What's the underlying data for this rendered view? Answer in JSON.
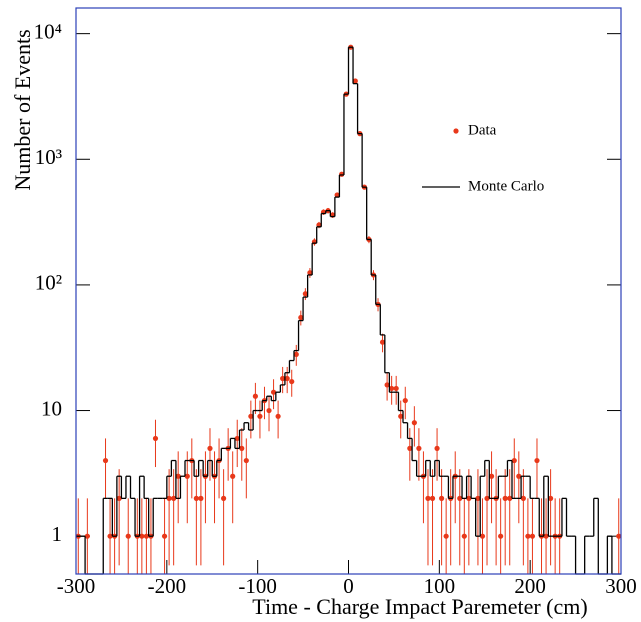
{
  "chart_data": {
    "type": "histogram",
    "x_label": "Time - Charge Impact Paremeter (cm)",
    "y_label": "Number of Events",
    "log_y": true,
    "xlim": [
      -300,
      300
    ],
    "xticks": [
      -300,
      -200,
      -100,
      0,
      100,
      200,
      300
    ],
    "ylim": [
      0.5,
      16000
    ],
    "yticks": [
      1,
      10,
      {
        "value": 100,
        "label": "10²"
      },
      {
        "value": 1000,
        "label": "10³"
      },
      {
        "value": 10000,
        "label": "10⁴"
      }
    ],
    "legend": "upper right",
    "bins": [
      -300,
      -295,
      -290,
      -285,
      -280,
      -275,
      -270,
      -265,
      -260,
      -255,
      -250,
      -245,
      -240,
      -235,
      -230,
      -225,
      -220,
      -215,
      -210,
      -205,
      -200,
      -195,
      -190,
      -185,
      -180,
      -175,
      -170,
      -165,
      -160,
      -155,
      -150,
      -145,
      -140,
      -135,
      -130,
      -125,
      -120,
      -115,
      -110,
      -105,
      -100,
      -95,
      -90,
      -85,
      -80,
      -75,
      -70,
      -65,
      -60,
      -55,
      -50,
      -45,
      -40,
      -35,
      -30,
      -25,
      -20,
      -15,
      -10,
      -5,
      0,
      5,
      10,
      15,
      20,
      25,
      30,
      35,
      40,
      45,
      50,
      55,
      60,
      65,
      70,
      75,
      80,
      85,
      90,
      95,
      100,
      105,
      110,
      115,
      120,
      125,
      130,
      135,
      140,
      145,
      150,
      155,
      160,
      165,
      170,
      175,
      180,
      185,
      190,
      195,
      200,
      205,
      210,
      215,
      220,
      225,
      230,
      235,
      240,
      245,
      250,
      255,
      260,
      265,
      270,
      275,
      280,
      285,
      290,
      295,
      300
    ],
    "series": [
      {
        "name": "Data",
        "color": "#e8381a",
        "style": "points",
        "values": [
          1,
          null,
          1,
          null,
          null,
          null,
          4,
          1,
          1,
          2,
          null,
          1,
          null,
          1,
          1,
          1,
          1,
          6,
          null,
          1,
          2,
          2,
          3,
          null,
          3,
          4,
          2,
          2,
          3,
          5,
          3,
          4,
          2,
          5,
          3,
          6,
          5,
          4,
          9,
          13,
          9,
          12,
          10,
          14,
          9,
          18,
          18,
          17,
          28,
          55,
          85,
          125,
          220,
          300,
          380,
          390,
          360,
          520,
          760,
          3300,
          7800,
          4200,
          1600,
          600,
          230,
          120,
          70,
          35,
          16,
          15,
          15,
          9,
          12,
          5,
          8,
          5,
          3,
          2,
          2,
          5,
          2,
          1,
          2,
          3,
          2,
          1,
          2,
          null,
          2,
          1,
          2,
          3,
          2,
          1,
          2,
          2,
          4,
          3,
          2,
          1,
          1,
          4,
          1,
          1,
          2,
          1,
          1,
          null,
          null,
          null,
          null,
          null,
          null,
          null,
          null,
          null,
          null,
          null,
          null,
          1
        ]
      },
      {
        "name": "Monte Carlo",
        "color": "#000000",
        "style": "step",
        "values": [
          1,
          1,
          0,
          0,
          0,
          0,
          2,
          2,
          1,
          3,
          2,
          3,
          2,
          1,
          3,
          2,
          1,
          2,
          2,
          2,
          3,
          4,
          2,
          3,
          4,
          4,
          3,
          4,
          3,
          4,
          3,
          4,
          5,
          5,
          6,
          5,
          7,
          8,
          7,
          10,
          10,
          12,
          13,
          12,
          14,
          16,
          20,
          25,
          30,
          52,
          80,
          120,
          215,
          290,
          370,
          390,
          350,
          500,
          750,
          3300,
          7800,
          4000,
          1600,
          600,
          230,
          120,
          70,
          40,
          20,
          14,
          14,
          10,
          8,
          6,
          4,
          3,
          3,
          4,
          3,
          4,
          3,
          3,
          2,
          3,
          3,
          2,
          3,
          2,
          1,
          3,
          4,
          2,
          2,
          3,
          3,
          4,
          2,
          2,
          3,
          3,
          2,
          2,
          1,
          3,
          1,
          1,
          1,
          2,
          1,
          1,
          0,
          0,
          1,
          1,
          2,
          0,
          0,
          1,
          0,
          0
        ]
      }
    ]
  }
}
